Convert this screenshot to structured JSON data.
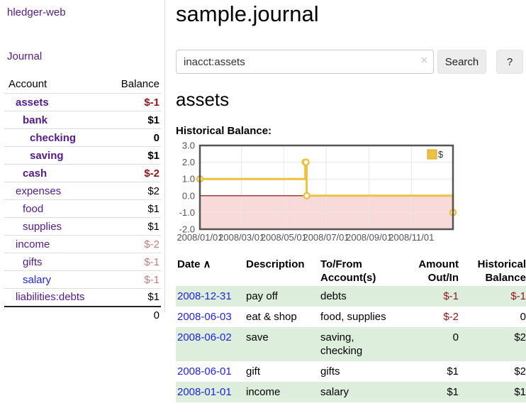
{
  "colors": {
    "purple": "#551a8b",
    "link-blue": "#2323dd",
    "neg-strong": "#941616",
    "neg-soft": "#c08080",
    "row-green": "#ddeedd",
    "chart-yellow": "#edc240",
    "chart-negative-fill": "#f9dada",
    "chart-zero-line": "#7c0a0a"
  },
  "sidebar": {
    "brand": "hledger-web",
    "journal_link": "Journal",
    "accounts": {
      "header_account": "Account",
      "header_balance": "Balance",
      "rows": [
        {
          "account": "assets",
          "balance": "$-1"
        },
        {
          "account": "bank",
          "balance": "$1"
        },
        {
          "account": "checking",
          "balance": "0"
        },
        {
          "account": "saving",
          "balance": "$1"
        },
        {
          "account": "cash",
          "balance": "$-2"
        },
        {
          "account": "expenses",
          "balance": "$2"
        },
        {
          "account": "food",
          "balance": "$1"
        },
        {
          "account": "supplies",
          "balance": "$1"
        },
        {
          "account": "income",
          "balance": "$-2"
        },
        {
          "account": "gifts",
          "balance": "$-1"
        },
        {
          "account": "salary",
          "balance": "$-1"
        },
        {
          "account": "liabilities:debts",
          "balance": "$1"
        }
      ],
      "total": "0"
    }
  },
  "main": {
    "title": "sample.journal",
    "search": {
      "value": "inacct:assets",
      "clear_icon": "×",
      "button_label": "Search",
      "help_label": "?"
    },
    "account_heading": "assets",
    "section_label": "Historical Balance:",
    "register": {
      "headers": {
        "date": "Date",
        "description": "Description",
        "accounts": "To/From Account(s)",
        "amount": "Amount Out/In",
        "balance": "Historical Balance"
      },
      "sort_icon": "∧",
      "rows": [
        {
          "date": "2008-12-31",
          "description": "pay off",
          "accounts": "debts",
          "amount": "$-1",
          "balance": "$-1"
        },
        {
          "date": "2008-06-03",
          "description": "eat & shop",
          "accounts": "food, supplies",
          "amount": "$-2",
          "balance": "0"
        },
        {
          "date": "2008-06-02",
          "description": "save",
          "accounts": "saving, checking",
          "amount": "0",
          "balance": "$2"
        },
        {
          "date": "2008-06-01",
          "description": "gift",
          "accounts": "gifts",
          "amount": "$1",
          "balance": "$2"
        },
        {
          "date": "2008-01-01",
          "description": "income",
          "accounts": "salary",
          "amount": "$1",
          "balance": "$1"
        }
      ]
    }
  },
  "chart_data": {
    "type": "line",
    "step": true,
    "title": "Historical Balance",
    "series": [
      {
        "name": "$",
        "color": "#edc240",
        "x": [
          "2008-01-01",
          "2008-06-01",
          "2008-06-02",
          "2008-06-03",
          "2008-12-31"
        ],
        "y": [
          1,
          2,
          2,
          0,
          -1
        ]
      }
    ],
    "xlim": [
      "2008-01-01",
      "2008-12-31"
    ],
    "ylim": [
      -2,
      3
    ],
    "x_ticks": [
      "2008/01/01",
      "2008/03/01",
      "2008/05/01",
      "2008/07/01",
      "2008/09/01",
      "2008/11/01"
    ],
    "y_ticks": [
      -2,
      -1,
      0,
      1,
      2,
      3
    ],
    "legend": {
      "label": "$",
      "position": "top-right"
    },
    "grid": true,
    "negative_region_fill": "#f9dada",
    "zero_line_color": "#7c0a0a"
  }
}
